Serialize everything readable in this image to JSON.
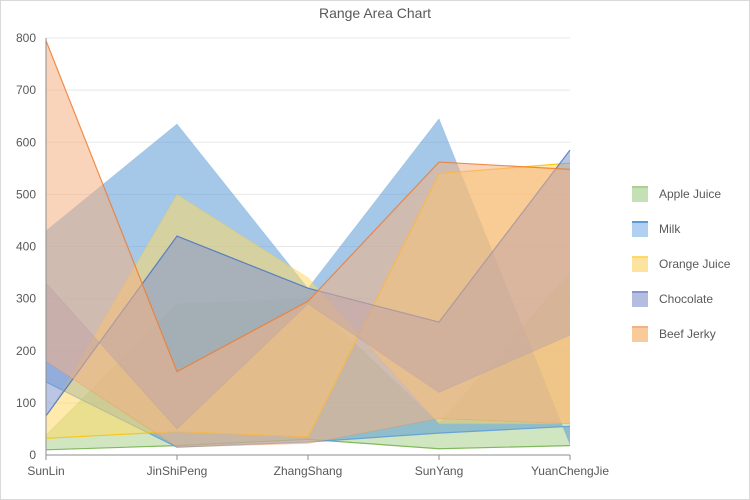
{
  "chart_data": {
    "type": "area",
    "subtype": "range-area",
    "title": "Range Area Chart",
    "xlabel": "",
    "ylabel": "",
    "categories": [
      "SunLin",
      "JinShiPeng",
      "ZhangShang",
      "SunYang",
      "YuanChengJie"
    ],
    "ylim": [
      0,
      800
    ],
    "yticks": [
      0,
      100,
      200,
      300,
      400,
      500,
      600,
      700,
      800
    ],
    "grid": true,
    "legend_position": "right",
    "series": [
      {
        "name": "Apple Juice",
        "color": "#70ad47",
        "fill": "#a9d18e",
        "low": [
          10,
          18,
          30,
          12,
          18
        ],
        "high": [
          38,
          290,
          300,
          60,
          350
        ]
      },
      {
        "name": "Milk",
        "color": "#5b9bd5",
        "fill": "#5b9bd5",
        "low": [
          140,
          15,
          25,
          42,
          55
        ],
        "high": [
          430,
          635,
          320,
          645,
          20
        ]
      },
      {
        "name": "Orange Juice",
        "color": "#ffc000",
        "fill": "#ffd966",
        "low": [
          32,
          45,
          35,
          540,
          560
        ],
        "high": [
          70,
          500,
          340,
          60,
          60
        ]
      },
      {
        "name": "Chocolate",
        "color": "#4472c4",
        "fill": "#8497d0",
        "low": [
          75,
          420,
          320,
          255,
          585
        ],
        "high": [
          330,
          50,
          290,
          120,
          230
        ]
      },
      {
        "name": "Beef Jerky",
        "color": "#ed7d31",
        "fill": "#f4b183",
        "low": [
          795,
          160,
          295,
          562,
          548
        ],
        "high": [
          180,
          15,
          22,
          70,
          60
        ]
      }
    ]
  },
  "legend": {
    "items": [
      {
        "label": "Apple Juice",
        "fill": "#c5e0b4",
        "border": "#a9d18e"
      },
      {
        "label": "Milk",
        "fill": "#afd0f0",
        "border": "#5b9bd5"
      },
      {
        "label": "Orange Juice",
        "fill": "#fde39e",
        "border": "#ffd966"
      },
      {
        "label": "Chocolate",
        "fill": "#b4bce0",
        "border": "#8497d0"
      },
      {
        "label": "Beef Jerky",
        "fill": "#f8cb9b",
        "border": "#f4b183"
      }
    ]
  }
}
